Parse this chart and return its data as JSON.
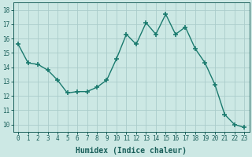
{
  "x_values": [
    0,
    1,
    2,
    3,
    4,
    5,
    6,
    7,
    8,
    9,
    10,
    11,
    12,
    13,
    14,
    15,
    16,
    17,
    18,
    19,
    20,
    21,
    22,
    23
  ],
  "y_values": [
    15.6,
    14.3,
    14.2,
    13.8,
    13.1,
    12.2,
    12.3,
    12.3,
    12.6,
    13.1,
    14.6,
    16.3,
    15.6,
    17.1,
    16.3,
    17.7,
    16.3,
    16.8,
    15.3,
    14.3,
    12.8,
    10.7,
    10.0,
    9.8
  ],
  "line_color": "#1a7a6e",
  "marker": "+",
  "marker_size": 5,
  "marker_linewidth": 1.2,
  "bg_color": "#cce8e4",
  "grid_color": "#aaccca",
  "grid_major_color": "#88bbba",
  "xlabel": "Humidex (Indice chaleur)",
  "ylim": [
    9.5,
    18.5
  ],
  "xlim": [
    -0.5,
    23.5
  ],
  "yticks": [
    10,
    11,
    12,
    13,
    14,
    15,
    16,
    17,
    18
  ],
  "xticks": [
    0,
    1,
    2,
    3,
    4,
    5,
    6,
    7,
    8,
    9,
    10,
    11,
    12,
    13,
    14,
    15,
    16,
    17,
    18,
    19,
    20,
    21,
    22,
    23
  ],
  "font_color": "#1a5f5a",
  "tick_fontsize": 5.5,
  "label_fontsize": 7,
  "linewidth": 1.0
}
